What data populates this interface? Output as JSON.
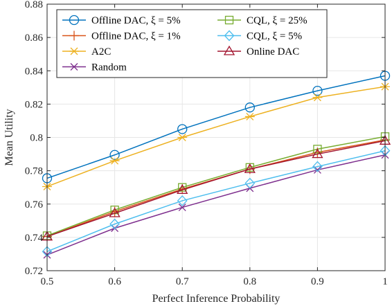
{
  "chart_data": {
    "type": "line",
    "xlabel": "Perfect Inference Probability",
    "ylabel": "Mean Utility",
    "xlim": [
      0.5,
      1.0
    ],
    "ylim": [
      0.72,
      0.88
    ],
    "x_ticks": [
      "0.5",
      "0.6",
      "0.7",
      "0.8",
      "0.9",
      "1"
    ],
    "y_ticks": [
      "0.72",
      "0.74",
      "0.76",
      "0.78",
      "0.8",
      "0.82",
      "0.84",
      "0.86",
      "0.88"
    ],
    "grid": true,
    "legend_position": "top-left",
    "x": [
      0.5,
      0.6,
      0.7,
      0.8,
      0.9,
      1.0
    ],
    "series": [
      {
        "name": "Offline DAC, ξ = 5%",
        "color": "#0072BD",
        "marker": "circle",
        "values": [
          0.7755,
          0.7895,
          0.805,
          0.818,
          0.828,
          0.837
        ]
      },
      {
        "name": "Offline DAC, ξ = 1%",
        "color": "#D95319",
        "marker": "plus",
        "values": [
          0.7405,
          0.7555,
          0.769,
          0.781,
          0.791,
          0.7985
        ]
      },
      {
        "name": "A2C",
        "color": "#EDB120",
        "marker": "asterisk",
        "values": [
          0.7705,
          0.786,
          0.8,
          0.8125,
          0.824,
          0.8305
        ]
      },
      {
        "name": "Random",
        "color": "#7E2F8E",
        "marker": "x",
        "values": [
          0.7295,
          0.7455,
          0.758,
          0.7695,
          0.7805,
          0.7895
        ]
      },
      {
        "name": "CQL, ξ = 25%",
        "color": "#77AC30",
        "marker": "square",
        "values": [
          0.741,
          0.7565,
          0.77,
          0.782,
          0.793,
          0.8005
        ]
      },
      {
        "name": "CQL, ξ = 5%",
        "color": "#4DBEEE",
        "marker": "diamond",
        "values": [
          0.7315,
          0.748,
          0.762,
          0.7725,
          0.7825,
          0.792
        ]
      },
      {
        "name": "Online DAC",
        "color": "#A2142F",
        "marker": "triangle",
        "values": [
          0.7405,
          0.7545,
          0.7685,
          0.781,
          0.79,
          0.798
        ]
      }
    ]
  }
}
